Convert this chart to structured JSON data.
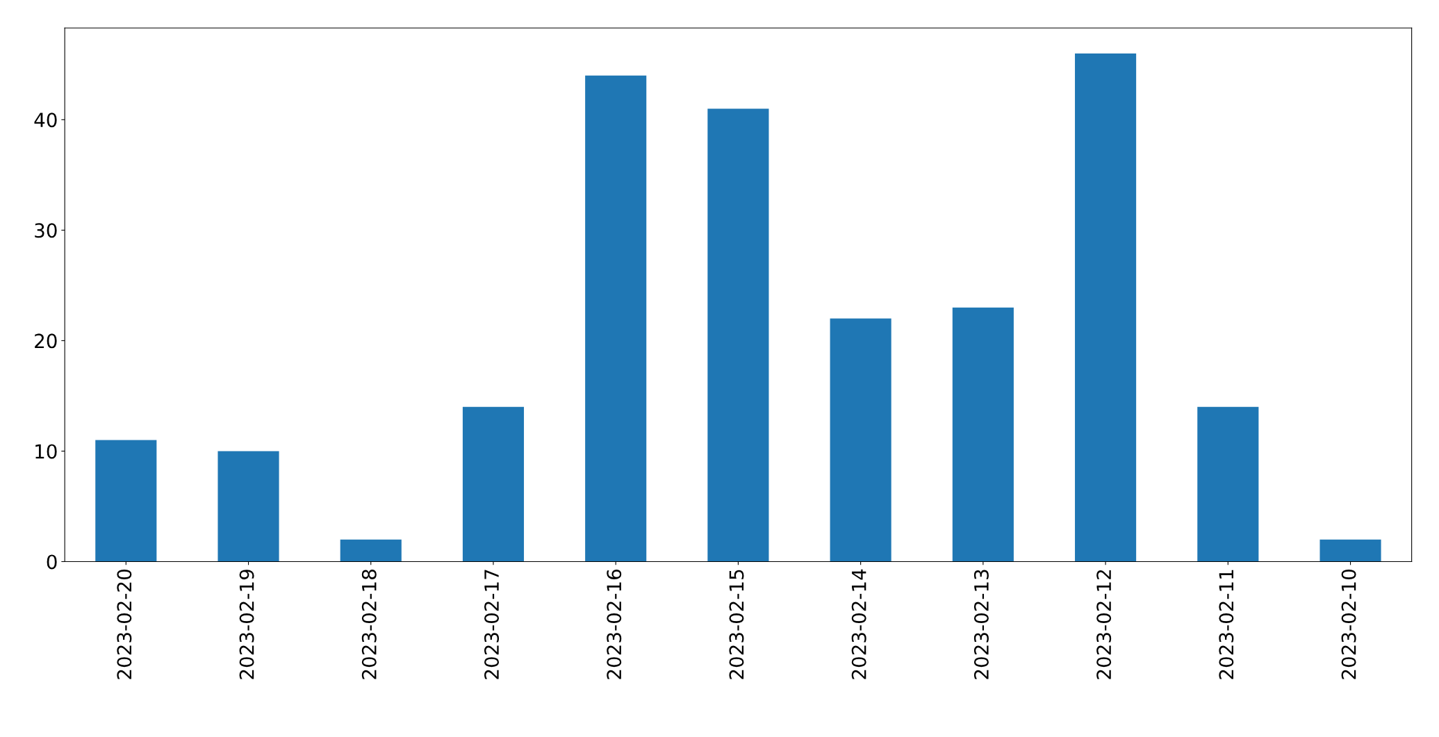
{
  "chart_data": {
    "type": "bar",
    "categories": [
      "2023-02-20",
      "2023-02-19",
      "2023-02-18",
      "2023-02-17",
      "2023-02-16",
      "2023-02-15",
      "2023-02-14",
      "2023-02-13",
      "2023-02-12",
      "2023-02-11",
      "2023-02-10"
    ],
    "values": [
      11,
      10,
      2,
      14,
      44,
      41,
      22,
      23,
      46,
      14,
      2
    ],
    "color": "#1f77b4",
    "ylim": [
      0,
      48.3
    ],
    "yticks": [
      0,
      10,
      20,
      30,
      40
    ],
    "grid": false,
    "legend": false
  }
}
